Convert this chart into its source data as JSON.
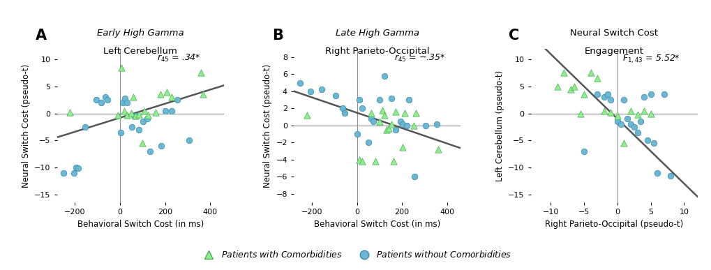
{
  "panel_A": {
    "title_italic": "Early High Gamma",
    "title_normal": "Left Cerebellum",
    "xlabel": "Behavioral Switch Cost (in ms)",
    "ylabel": "Neural Switch Cost (pseudo-t)",
    "stat_label": "r",
    "stat_sub": "45",
    "stat_val": " = .34*",
    "xlim": [
      -280,
      460
    ],
    "ylim": [
      -16.5,
      12
    ],
    "xticks": [
      -200,
      0,
      200,
      400
    ],
    "yticks": [
      -15,
      -10,
      -5,
      0,
      5,
      10
    ],
    "green_x": [
      -222,
      -8,
      5,
      18,
      32,
      48,
      58,
      68,
      82,
      98,
      108,
      123,
      158,
      178,
      208,
      228,
      358,
      368
    ],
    "green_y": [
      0.2,
      -0.3,
      8.5,
      0.5,
      -0.3,
      0.1,
      3.0,
      -0.5,
      -0.2,
      -5.5,
      0.5,
      -0.3,
      0.2,
      3.5,
      4.0,
      3.0,
      7.5,
      3.5
    ],
    "blue_x": [
      -252,
      -205,
      -195,
      -185,
      -155,
      -105,
      -85,
      -65,
      -55,
      2,
      12,
      22,
      32,
      52,
      62,
      72,
      82,
      102,
      122,
      132,
      182,
      202,
      228,
      255,
      305
    ],
    "blue_y": [
      -11,
      -11,
      -10,
      -10.2,
      -2.5,
      2.5,
      2.0,
      3.0,
      2.5,
      -3.5,
      2.0,
      2.8,
      2.0,
      -2.5,
      -0.5,
      -0.5,
      -3.0,
      -1.5,
      -1.0,
      -7.0,
      -6.0,
      0.5,
      0.5,
      2.5,
      -5.0
    ],
    "slope": 0.013,
    "intercept": -0.8
  },
  "panel_B": {
    "title_italic": "Late High Gamma",
    "title_normal": "Right Parieto-Occipital",
    "xlabel": "Behavioral Switch Cost (in ms)",
    "ylabel": "Neural Switch Cost (pseudo-t)",
    "stat_label": "r",
    "stat_sub": "45",
    "stat_val": " = −.35*",
    "xlim": [
      -280,
      460
    ],
    "ylim": [
      -9,
      9
    ],
    "xticks": [
      -200,
      0,
      200,
      400
    ],
    "yticks": [
      -8,
      -6,
      -4,
      -2,
      0,
      2,
      4,
      6,
      8
    ],
    "green_x": [
      -222,
      12,
      22,
      62,
      82,
      102,
      112,
      122,
      132,
      142,
      152,
      162,
      172,
      202,
      212,
      252,
      262,
      362
    ],
    "green_y": [
      1.2,
      -4.0,
      -4.2,
      1.5,
      -4.2,
      0.5,
      1.8,
      1.2,
      -0.5,
      -0.3,
      0.2,
      -4.2,
      1.6,
      -2.5,
      1.5,
      0.0,
      1.5,
      -2.8
    ],
    "blue_x": [
      -252,
      -205,
      -155,
      -95,
      -65,
      -55,
      2,
      12,
      22,
      52,
      62,
      72,
      102,
      122,
      152,
      172,
      192,
      202,
      222,
      232,
      255,
      305,
      355
    ],
    "blue_y": [
      5.0,
      4.0,
      4.2,
      3.5,
      2.0,
      1.5,
      -1.0,
      3.0,
      2.0,
      -2.0,
      0.8,
      0.5,
      3.0,
      5.8,
      3.2,
      -0.5,
      0.5,
      0.2,
      0.0,
      3.0,
      -6.0,
      0.0,
      0.2
    ],
    "slope": -0.009,
    "intercept": 1.5
  },
  "panel_C": {
    "title_line1": "Neural Switch Cost",
    "title_line2": "Engagement",
    "xlabel": "Right Parieto-Occipital (pseudo-t)",
    "ylabel": "Left Cerebellum (pseudo-t)",
    "stat_label": "F",
    "stat_sub": "1,43",
    "stat_val": " = 5.52*",
    "xlim": [
      -13,
      12
    ],
    "ylim": [
      -16.5,
      12
    ],
    "xticks": [
      -10,
      -5,
      0,
      5,
      10
    ],
    "yticks": [
      -15,
      -10,
      -5,
      0,
      5,
      10
    ],
    "green_x": [
      -9,
      -8,
      -7,
      -6.5,
      -5.5,
      -5,
      -4,
      -3,
      -2,
      -1,
      0,
      1,
      2,
      3,
      4,
      5
    ],
    "green_y": [
      5.0,
      7.5,
      4.5,
      5.0,
      0.0,
      3.5,
      7.5,
      6.5,
      0.5,
      0.2,
      -0.5,
      -5.5,
      0.5,
      -0.2,
      0.5,
      0.0
    ],
    "blue_x": [
      -5,
      -3,
      -2,
      -1.5,
      -1,
      0,
      0.5,
      1,
      1.5,
      2,
      2.5,
      3,
      3.5,
      4,
      4.5,
      5,
      5.5,
      6,
      7,
      8
    ],
    "blue_y": [
      -7.0,
      3.5,
      3.0,
      3.5,
      2.5,
      -1.5,
      -2.0,
      2.5,
      -1.0,
      -2.0,
      -2.5,
      -3.5,
      -1.5,
      3.0,
      -5.0,
      3.5,
      -5.5,
      -11.0,
      3.5,
      -11.5
    ],
    "slope": -1.2,
    "intercept": -1.0
  },
  "green_color": "#90EE90",
  "green_edge": "#4CAF50",
  "blue_color": "#6BB8D4",
  "blue_edge": "#3A88AA",
  "line_color": "#555555",
  "legend_green_label": "Patients with Comorbidities",
  "legend_blue_label": "Patients without Comorbidities",
  "background_color": "#ffffff"
}
